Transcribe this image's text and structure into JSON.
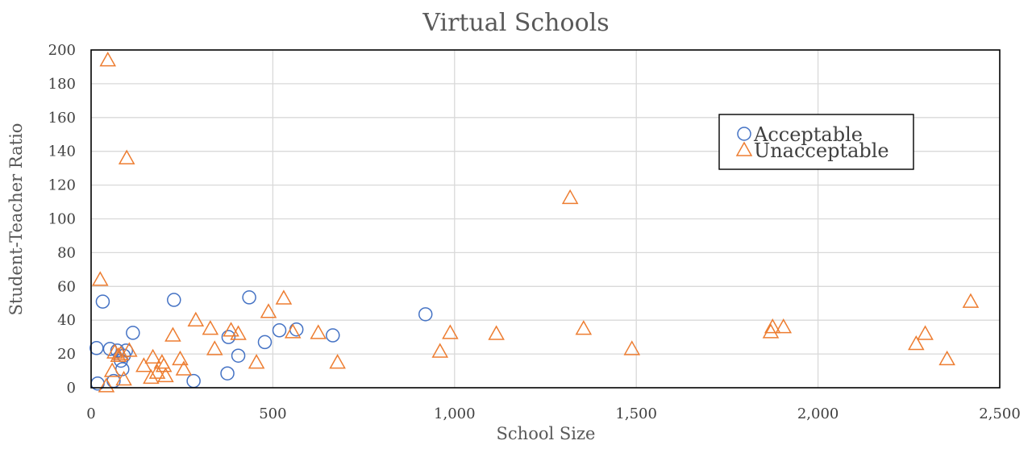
{
  "chart_data": {
    "type": "scatter",
    "title": "Virtual Schools",
    "xlabel": "School Size",
    "ylabel": "Student-Teacher Ratio",
    "xlim": [
      0,
      2500
    ],
    "ylim": [
      0,
      200
    ],
    "xticks": [
      0,
      500,
      1000,
      1500,
      2000,
      2500
    ],
    "xtick_labels": [
      "0",
      "500",
      "1,000",
      "1,500",
      "2,000",
      "2,500"
    ],
    "yticks": [
      0,
      20,
      40,
      60,
      80,
      100,
      120,
      140,
      160,
      180,
      200
    ],
    "ytick_labels": [
      "0",
      "20",
      "40",
      "60",
      "80",
      "100",
      "120",
      "140",
      "160",
      "180",
      "200"
    ],
    "grid": true,
    "legend_position": "top-right",
    "series": [
      {
        "name": "Acceptable",
        "marker": "circle",
        "color": "#4472c4",
        "points": [
          [
            15,
            23.5
          ],
          [
            18,
            2.5
          ],
          [
            32,
            51
          ],
          [
            52,
            23
          ],
          [
            62,
            4
          ],
          [
            72,
            22
          ],
          [
            82,
            16
          ],
          [
            86,
            11
          ],
          [
            90,
            19
          ],
          [
            96,
            22
          ],
          [
            115,
            32.5
          ],
          [
            228,
            52
          ],
          [
            282,
            4
          ],
          [
            375,
            8.5
          ],
          [
            378,
            30
          ],
          [
            405,
            19
          ],
          [
            435,
            53.5
          ],
          [
            478,
            27
          ],
          [
            518,
            34
          ],
          [
            565,
            34.5
          ],
          [
            665,
            31
          ],
          [
            920,
            43.5
          ]
        ]
      },
      {
        "name": "Unacceptable",
        "marker": "triangle",
        "color": "#ed7d31",
        "points": [
          [
            25,
            64
          ],
          [
            42,
            1
          ],
          [
            46,
            194
          ],
          [
            58,
            10
          ],
          [
            65,
            21
          ],
          [
            75,
            19
          ],
          [
            82,
            20
          ],
          [
            90,
            5
          ],
          [
            98,
            136
          ],
          [
            105,
            22
          ],
          [
            145,
            13
          ],
          [
            165,
            6
          ],
          [
            170,
            18
          ],
          [
            182,
            9
          ],
          [
            195,
            15
          ],
          [
            200,
            13
          ],
          [
            205,
            7
          ],
          [
            225,
            31
          ],
          [
            245,
            17
          ],
          [
            255,
            11
          ],
          [
            288,
            40
          ],
          [
            328,
            35
          ],
          [
            340,
            23
          ],
          [
            385,
            34
          ],
          [
            405,
            32
          ],
          [
            455,
            15
          ],
          [
            488,
            45
          ],
          [
            530,
            53
          ],
          [
            555,
            33
          ],
          [
            625,
            32.5
          ],
          [
            678,
            15
          ],
          [
            960,
            21.5
          ],
          [
            988,
            32.5
          ],
          [
            1115,
            32
          ],
          [
            1318,
            112.5
          ],
          [
            1355,
            35
          ],
          [
            1488,
            23
          ],
          [
            1870,
            33
          ],
          [
            1875,
            36
          ],
          [
            1905,
            36
          ],
          [
            2270,
            26
          ],
          [
            2295,
            32
          ],
          [
            2355,
            17
          ],
          [
            2420,
            51
          ]
        ]
      }
    ]
  }
}
